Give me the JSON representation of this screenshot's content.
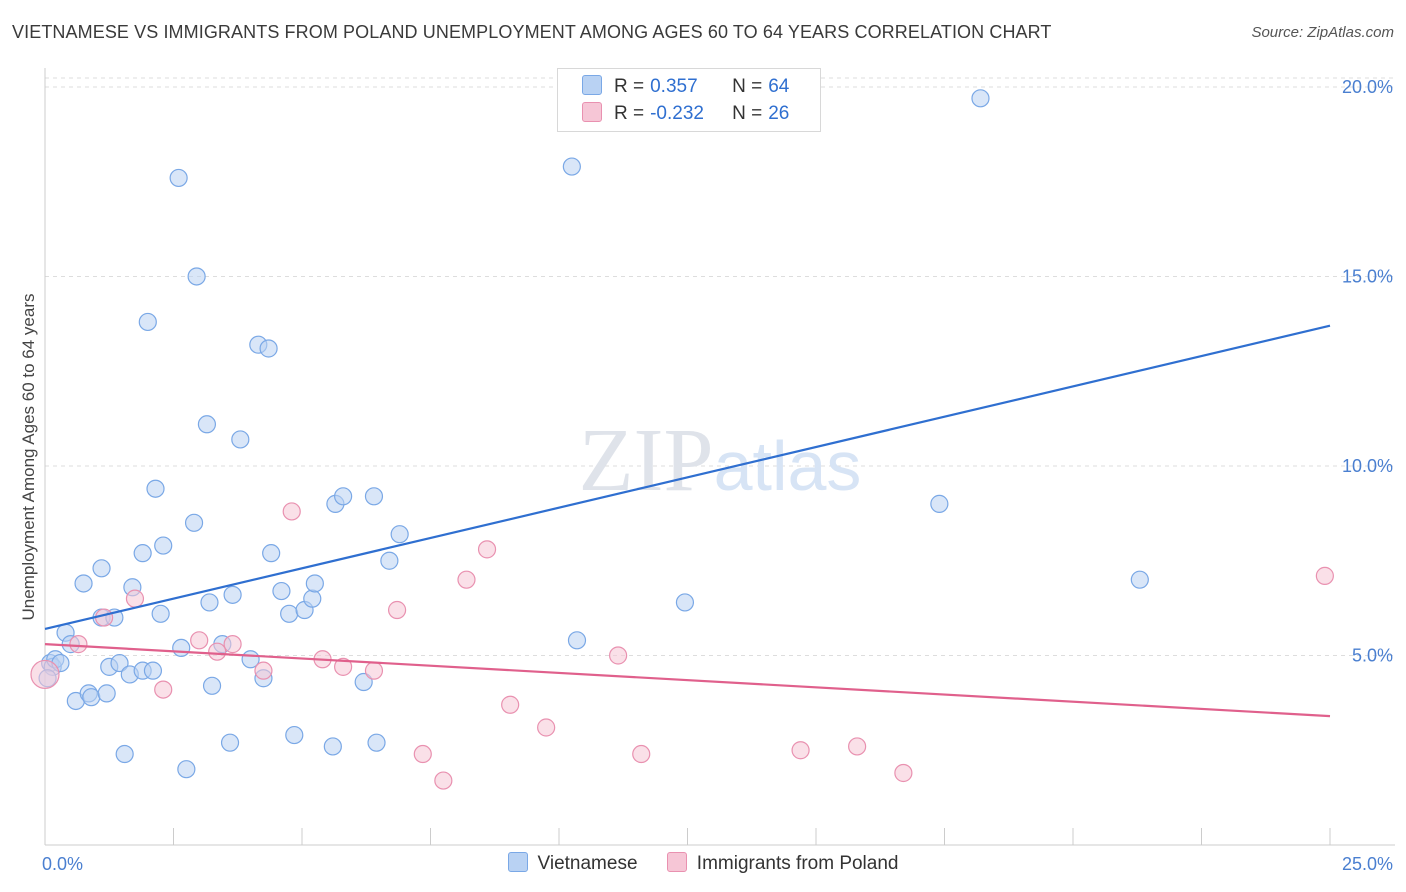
{
  "chart_data": {
    "type": "scatter",
    "title": "VIETNAMESE VS IMMIGRANTS FROM POLAND UNEMPLOYMENT AMONG AGES 60 TO 64 YEARS CORRELATION CHART",
    "source": "Source: ZipAtlas.com",
    "xlabel": "",
    "ylabel": "Unemployment Among Ages 60 to 64 years",
    "xlim": [
      0,
      25
    ],
    "ylim": [
      0,
      20.5
    ],
    "x_tick_labels": [
      "0.0%",
      "25.0%"
    ],
    "y_ticks": [
      5,
      10,
      15,
      20
    ],
    "y_tick_labels": [
      "5.0%",
      "10.0%",
      "15.0%",
      "20.0%"
    ],
    "grid": true,
    "legend_position": "top-center",
    "watermark": "ZIPatlas",
    "series": [
      {
        "name": "Vietnamese",
        "color": "#7aa8e6",
        "fill": "#b9d2f3",
        "line_color": "#2f6fd0",
        "r_label": "R =",
        "r_value": "0.357",
        "n_label": "N =",
        "n_value": "64",
        "trend": {
          "x": [
            0,
            25
          ],
          "y": [
            5.7,
            13.7
          ]
        },
        "points": [
          [
            0.1,
            4.8
          ],
          [
            0.15,
            4.7
          ],
          [
            0.2,
            4.9
          ],
          [
            0.3,
            4.8
          ],
          [
            0.4,
            5.6
          ],
          [
            0.5,
            5.3
          ],
          [
            0.6,
            3.8
          ],
          [
            0.75,
            6.9
          ],
          [
            0.85,
            4.0
          ],
          [
            0.9,
            3.9
          ],
          [
            1.1,
            6.0
          ],
          [
            1.1,
            7.3
          ],
          [
            1.2,
            4.0
          ],
          [
            1.25,
            4.7
          ],
          [
            1.35,
            6.0
          ],
          [
            1.45,
            4.8
          ],
          [
            1.55,
            2.4
          ],
          [
            1.65,
            4.5
          ],
          [
            1.7,
            6.8
          ],
          [
            1.9,
            4.6
          ],
          [
            1.9,
            7.7
          ],
          [
            2.0,
            13.8
          ],
          [
            2.1,
            4.6
          ],
          [
            2.15,
            9.4
          ],
          [
            2.25,
            6.1
          ],
          [
            2.3,
            7.9
          ],
          [
            2.6,
            17.6
          ],
          [
            2.65,
            5.2
          ],
          [
            2.75,
            2.0
          ],
          [
            2.9,
            8.5
          ],
          [
            2.95,
            15.0
          ],
          [
            3.15,
            11.1
          ],
          [
            3.2,
            6.4
          ],
          [
            3.25,
            4.2
          ],
          [
            3.45,
            5.3
          ],
          [
            3.6,
            2.7
          ],
          [
            3.65,
            6.6
          ],
          [
            3.8,
            10.7
          ],
          [
            4.0,
            4.9
          ],
          [
            4.15,
            13.2
          ],
          [
            4.25,
            4.4
          ],
          [
            4.35,
            13.1
          ],
          [
            4.4,
            7.7
          ],
          [
            4.6,
            6.7
          ],
          [
            4.75,
            6.1
          ],
          [
            4.85,
            2.9
          ],
          [
            5.05,
            6.2
          ],
          [
            5.2,
            6.5
          ],
          [
            5.25,
            6.9
          ],
          [
            5.6,
            2.6
          ],
          [
            5.65,
            9.0
          ],
          [
            5.8,
            9.2
          ],
          [
            6.2,
            4.3
          ],
          [
            6.4,
            9.2
          ],
          [
            6.45,
            2.7
          ],
          [
            6.7,
            7.5
          ],
          [
            6.9,
            8.2
          ],
          [
            10.25,
            17.9
          ],
          [
            10.35,
            5.4
          ],
          [
            12.45,
            6.4
          ],
          [
            17.4,
            9.0
          ],
          [
            18.2,
            19.7
          ],
          [
            21.3,
            7.0
          ],
          [
            0.05,
            4.4
          ]
        ]
      },
      {
        "name": "Immigrants from Poland",
        "color": "#e991b0",
        "fill": "#f6c6d6",
        "line_color": "#e0608c",
        "r_label": "R =",
        "r_value": "-0.232",
        "n_label": "N =",
        "n_value": "26",
        "trend": {
          "x": [
            0,
            25
          ],
          "y": [
            5.3,
            3.4
          ]
        },
        "points": [
          [
            0.0,
            4.5
          ],
          [
            0.65,
            5.3
          ],
          [
            1.15,
            6.0
          ],
          [
            1.75,
            6.5
          ],
          [
            2.3,
            4.1
          ],
          [
            3.0,
            5.4
          ],
          [
            3.35,
            5.1
          ],
          [
            3.65,
            5.3
          ],
          [
            4.25,
            4.6
          ],
          [
            4.8,
            8.8
          ],
          [
            5.4,
            4.9
          ],
          [
            5.8,
            4.7
          ],
          [
            6.4,
            4.6
          ],
          [
            6.85,
            6.2
          ],
          [
            7.35,
            2.4
          ],
          [
            7.75,
            1.7
          ],
          [
            8.2,
            7.0
          ],
          [
            8.6,
            7.8
          ],
          [
            9.05,
            3.7
          ],
          [
            9.75,
            3.1
          ],
          [
            11.15,
            5.0
          ],
          [
            11.6,
            2.4
          ],
          [
            14.7,
            2.5
          ],
          [
            15.8,
            2.6
          ],
          [
            16.7,
            1.9
          ],
          [
            24.9,
            7.1
          ]
        ]
      }
    ]
  }
}
